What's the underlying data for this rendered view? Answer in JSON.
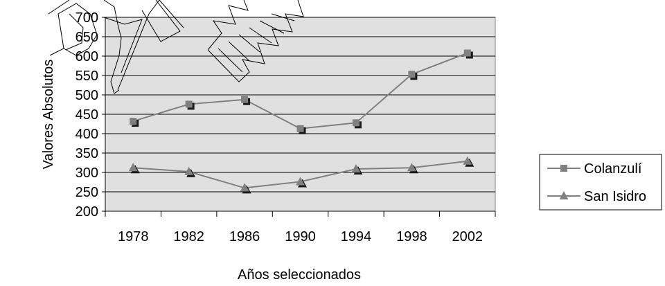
{
  "chart_data": {
    "type": "line",
    "title": "",
    "xlabel": "Años seleccionados",
    "ylabel": "Valores Absolutos",
    "categories": [
      "1978",
      "1982",
      "1986",
      "1990",
      "1994",
      "1998",
      "2002"
    ],
    "ylim": [
      200,
      700
    ],
    "yticks": [
      200,
      250,
      300,
      350,
      400,
      450,
      500,
      550,
      600,
      650,
      700
    ],
    "grid": true,
    "legend_position": "right",
    "series": [
      {
        "name": "Colanzulí",
        "marker": "square",
        "values": [
          432,
          476,
          488,
          413,
          428,
          553,
          608
        ]
      },
      {
        "name": "San Isidro",
        "marker": "triangle",
        "values": [
          312,
          302,
          260,
          276,
          309,
          312,
          329
        ]
      }
    ],
    "colors": {
      "plot_background": "#e0e0e0",
      "line": "#808080",
      "marker": "#808080",
      "marker_shadow": "#1a1a1a",
      "gridline": "#000000",
      "watermark": "#000000"
    }
  }
}
